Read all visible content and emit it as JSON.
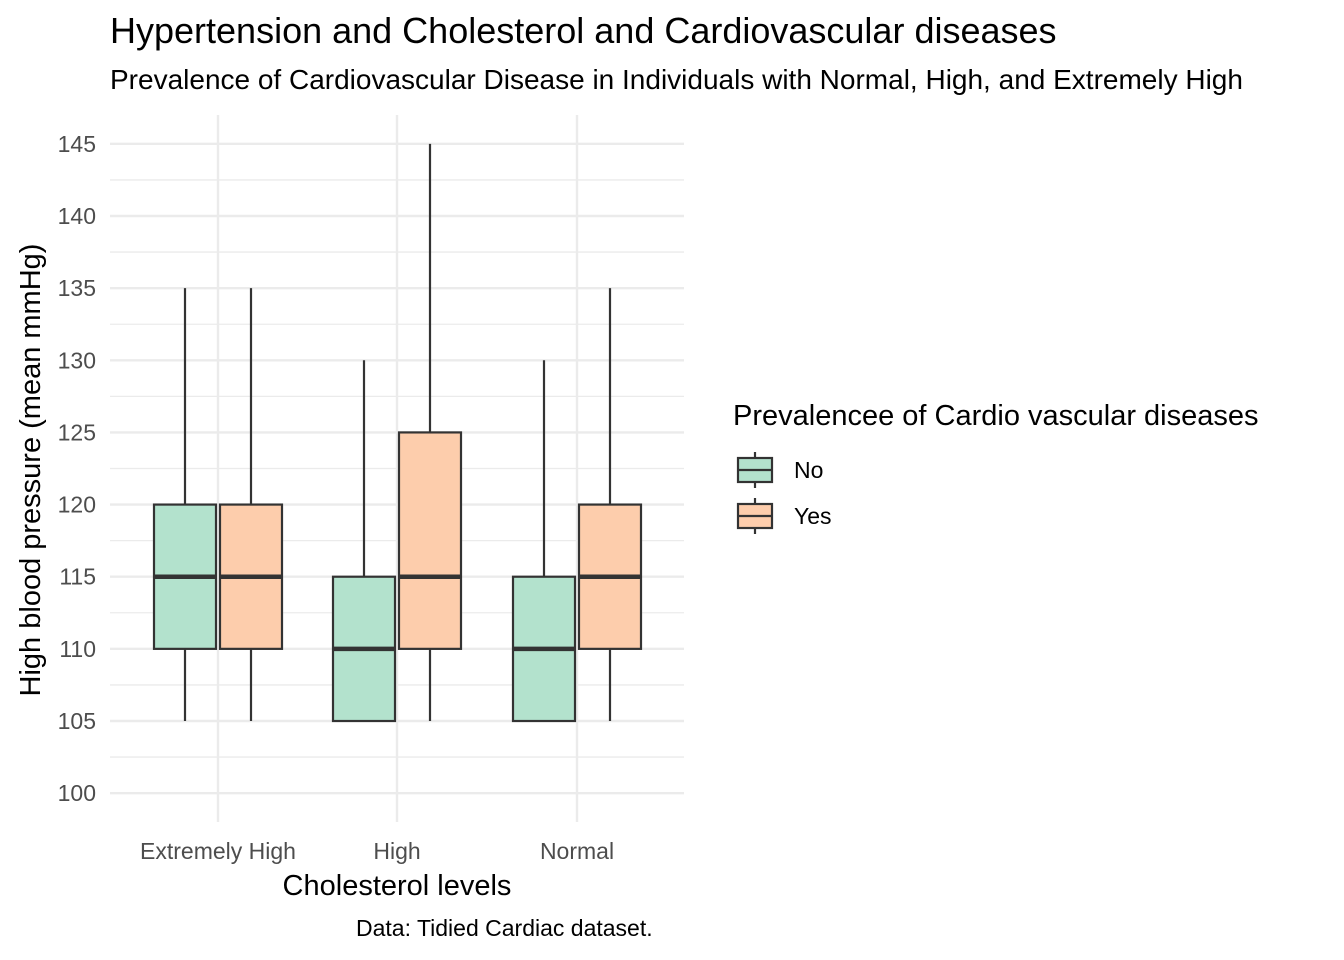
{
  "chart_data": {
    "type": "boxplot",
    "title": "Hypertension and Cholesterol and Cardiovascular diseases",
    "subtitle": "Prevalence of Cardiovascular Disease in Individuals with Normal, High, and Extremely High",
    "caption": "Data: Tidied Cardiac dataset.",
    "xlabel": "Cholesterol levels",
    "ylabel": "High blood pressure (mean mmHg)",
    "categories": [
      "Extremely High",
      "High",
      "Normal"
    ],
    "ylim": [
      98,
      147
    ],
    "yticks": [
      100,
      105,
      110,
      115,
      120,
      125,
      130,
      135,
      140,
      145
    ],
    "grid": true,
    "legend": {
      "title": "Prevalencee of Cardio vascular diseases",
      "position": "right"
    },
    "series": [
      {
        "name": "No",
        "color": "#b3e2cd",
        "boxes": [
          {
            "category": "Extremely High",
            "min": 105,
            "q1": 110,
            "median": 115,
            "q3": 120,
            "max": 135
          },
          {
            "category": "High",
            "min": 105,
            "q1": 105,
            "median": 110,
            "q3": 115,
            "max": 130
          },
          {
            "category": "Normal",
            "min": 105,
            "q1": 105,
            "median": 110,
            "q3": 115,
            "max": 130
          }
        ]
      },
      {
        "name": "Yes",
        "color": "#fdcdac",
        "boxes": [
          {
            "category": "Extremely High",
            "min": 105,
            "q1": 110,
            "median": 115,
            "q3": 120,
            "max": 135
          },
          {
            "category": "High",
            "min": 105,
            "q1": 110,
            "median": 115,
            "q3": 125,
            "max": 145
          },
          {
            "category": "Normal",
            "min": 105,
            "q1": 110,
            "median": 115,
            "q3": 120,
            "max": 135
          }
        ]
      }
    ]
  }
}
